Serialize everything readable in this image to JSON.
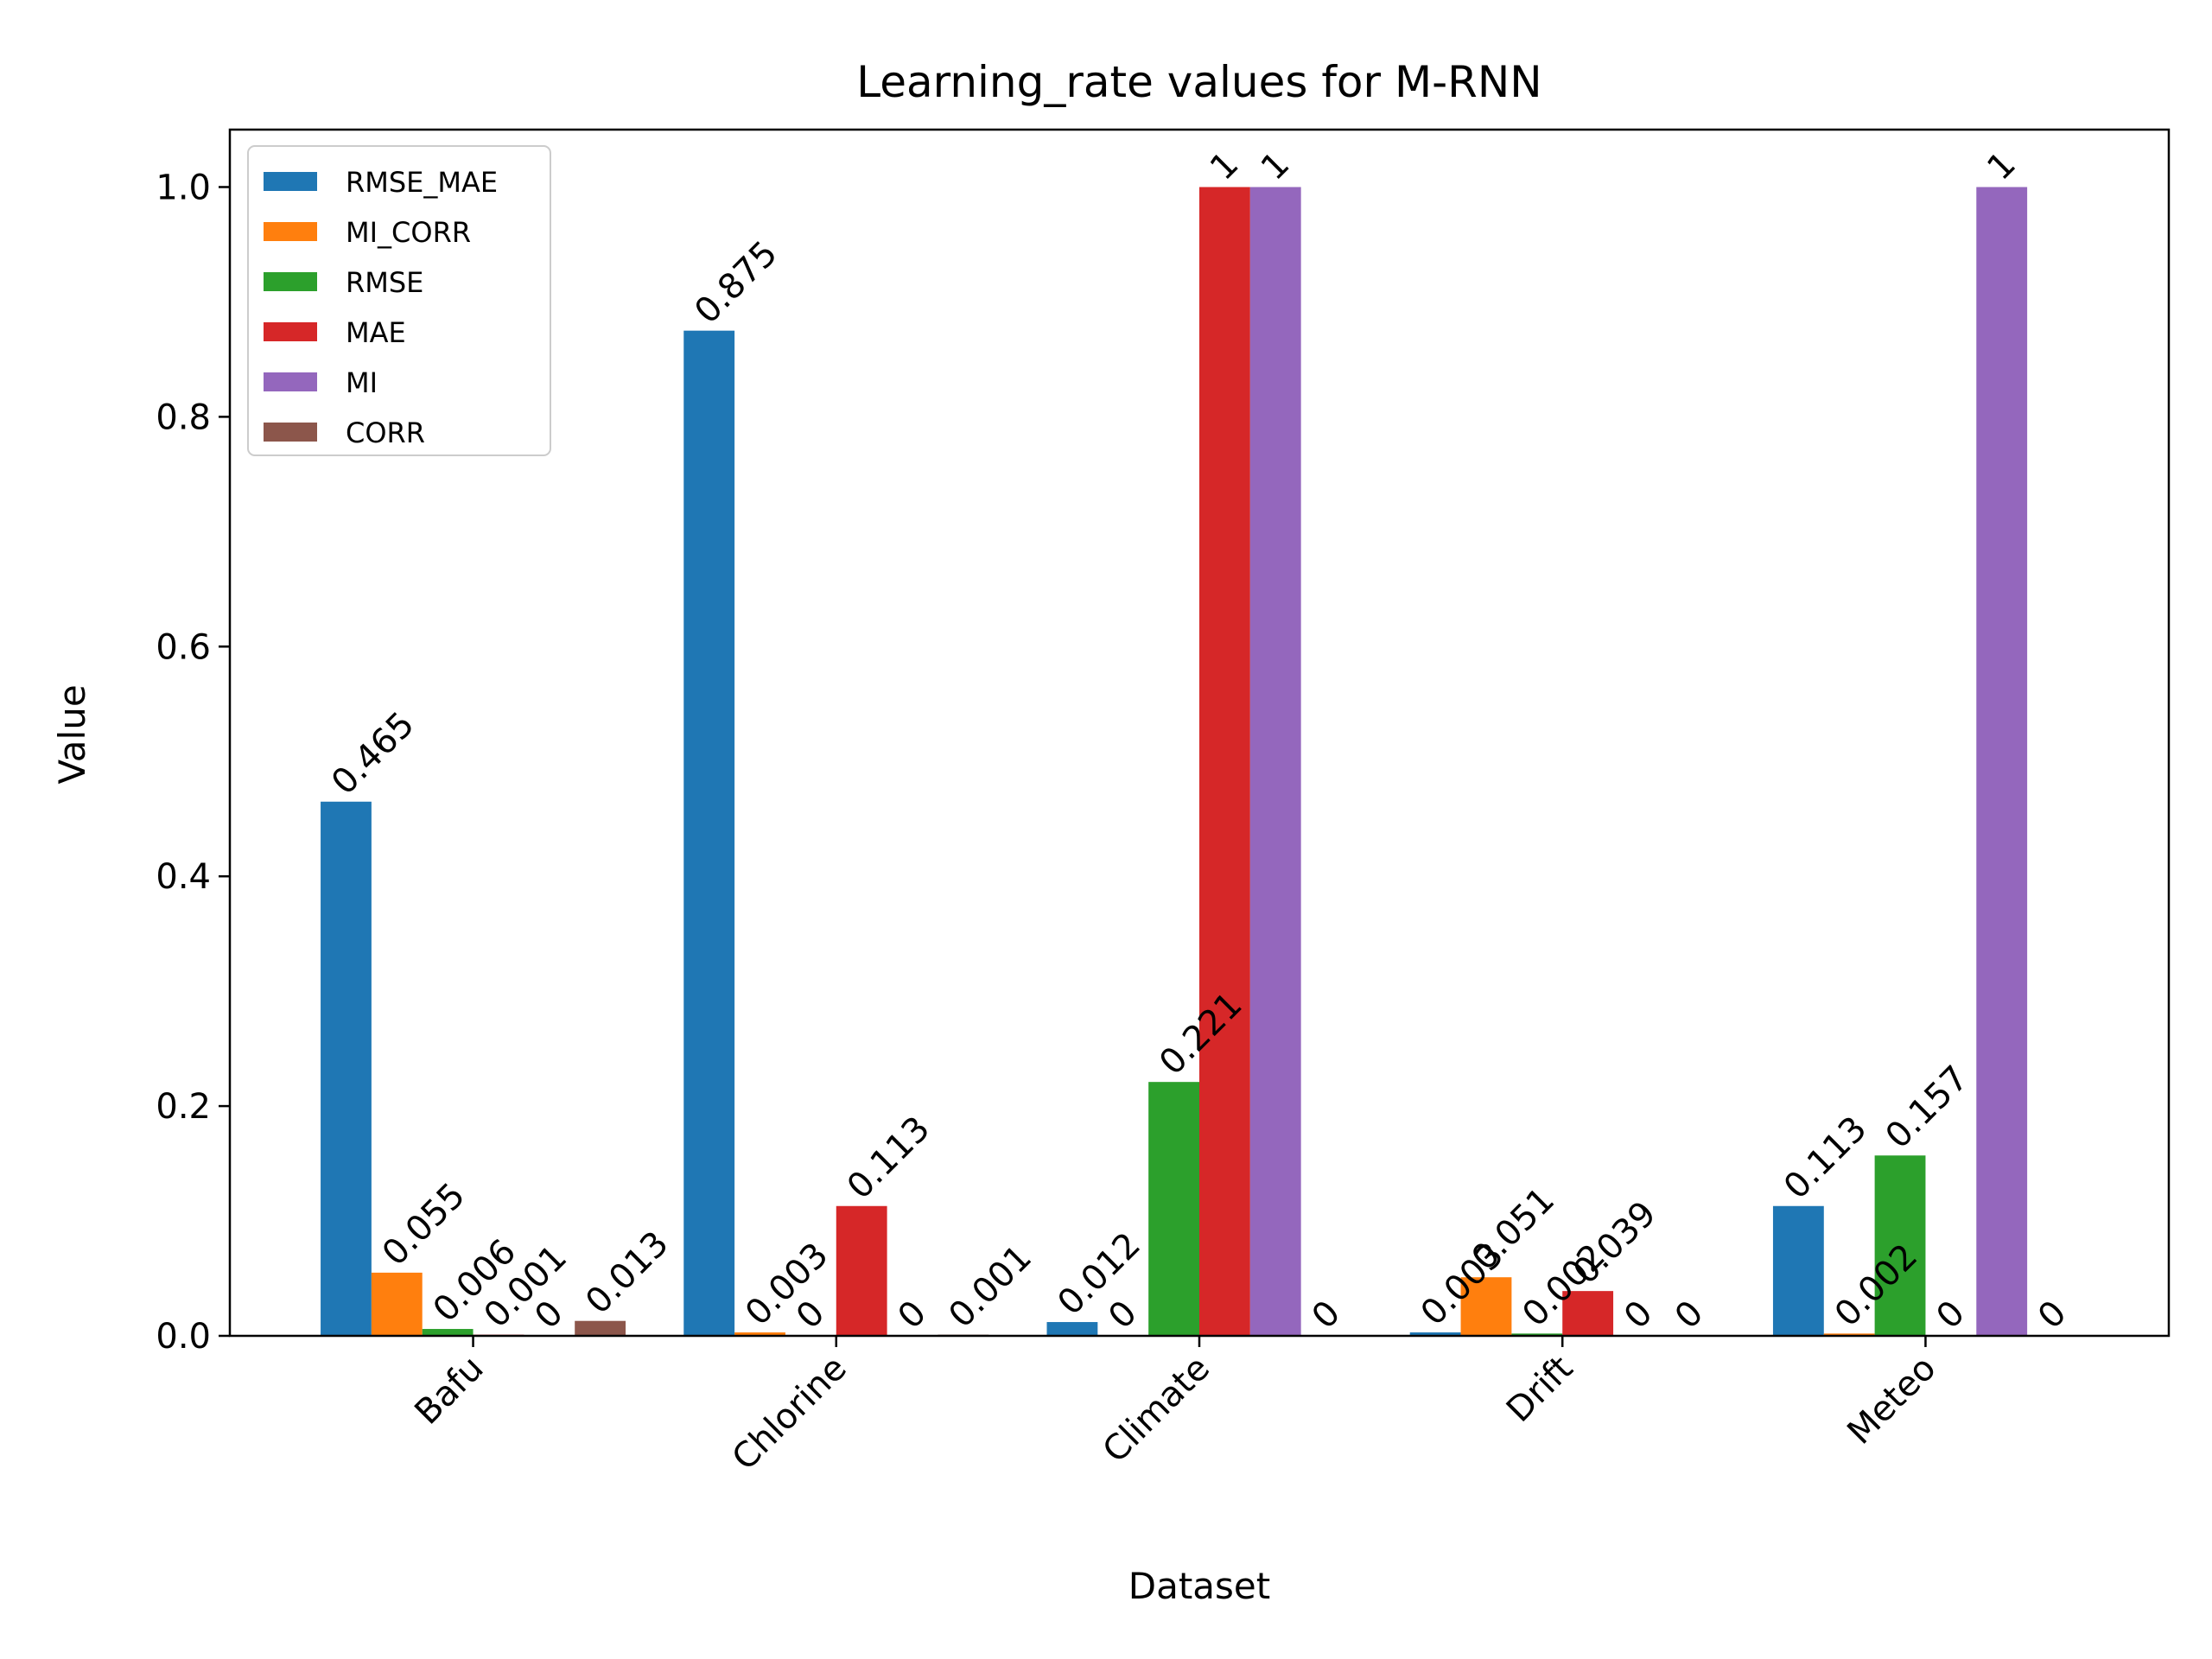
{
  "chart_data": {
    "type": "bar",
    "title": "Learning_rate values for M-RNN",
    "xlabel": "Dataset",
    "ylabel": "Value",
    "ylim": [
      0,
      1.05
    ],
    "yticks": [
      "0.0",
      "0.2",
      "0.4",
      "0.6",
      "0.8",
      "1.0"
    ],
    "categories": [
      "Bafu",
      "Chlorine",
      "Climate",
      "Drift",
      "Meteo"
    ],
    "legend_position": "top-left",
    "grid": false,
    "series": [
      {
        "name": "RMSE_MAE",
        "color": "#1f77b4",
        "values": [
          0.465,
          0.875,
          0.012,
          0.003,
          0.113
        ],
        "labels": [
          "0.465",
          "0.875",
          "0.012",
          "0.003",
          "0.113"
        ]
      },
      {
        "name": "MI_CORR",
        "color": "#ff7f0e",
        "values": [
          0.055,
          0.003,
          0,
          0.051,
          0.002
        ],
        "labels": [
          "0.055",
          "0.003",
          "0",
          "0.051",
          "0.002"
        ]
      },
      {
        "name": "RMSE",
        "color": "#2ca02c",
        "values": [
          0.006,
          0,
          0.221,
          0.002,
          0.157
        ],
        "labels": [
          "0.006",
          "0",
          "0.221",
          "0.002",
          "0.157"
        ]
      },
      {
        "name": "MAE",
        "color": "#d62728",
        "values": [
          0.001,
          0.113,
          1,
          0.039,
          0
        ],
        "labels": [
          "0.001",
          "0.113",
          "1",
          "0.039",
          "0"
        ]
      },
      {
        "name": "MI",
        "color": "#9467bd",
        "values": [
          0,
          0,
          1,
          0,
          1
        ],
        "labels": [
          "0",
          "0",
          "1",
          "0",
          "1"
        ]
      },
      {
        "name": "CORR",
        "color": "#8c564b",
        "values": [
          0.013,
          0.001,
          0,
          0,
          0
        ],
        "labels": [
          "0.013",
          "0.001",
          "0",
          "0",
          "0"
        ]
      }
    ]
  }
}
